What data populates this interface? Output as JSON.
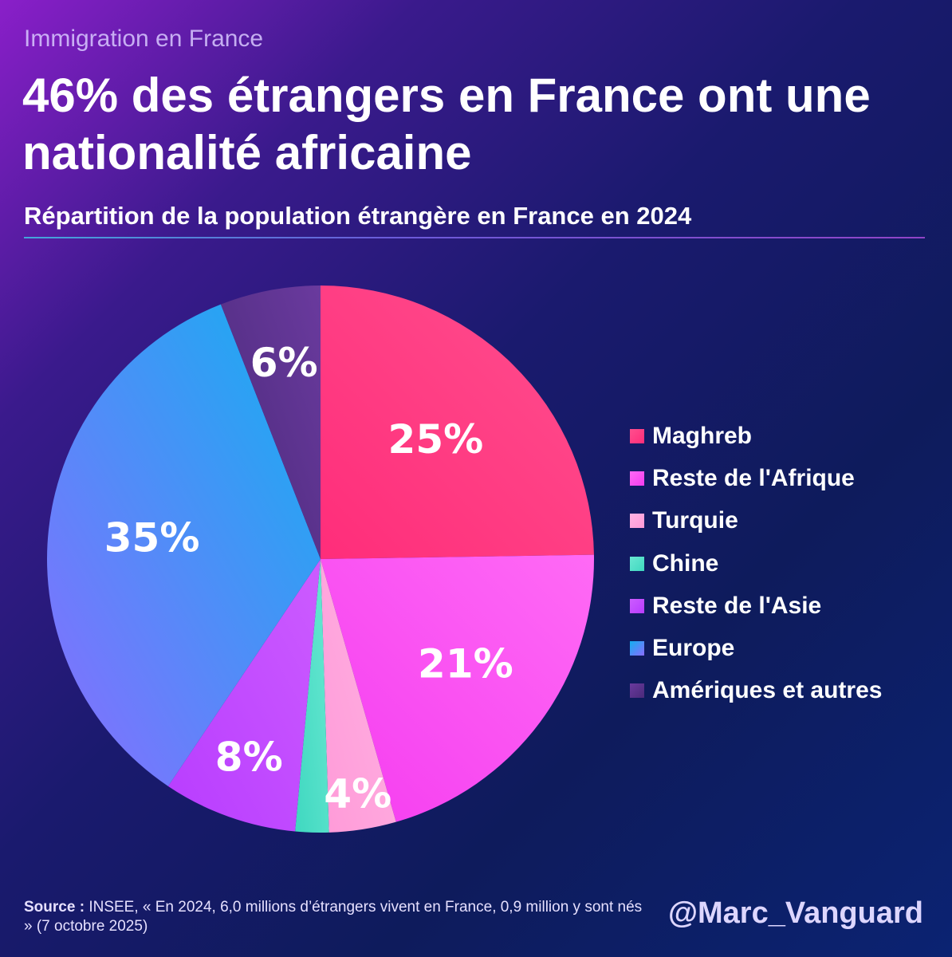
{
  "header": {
    "kicker": "Immigration en France",
    "title": "46% des étrangers en France ont une nationalité africaine",
    "subtitle": "Répartition de la population étrangère en France en 2024"
  },
  "chart_data": {
    "type": "pie",
    "title": "Répartition de la population étrangère en France en 2024",
    "start": "top, clockwise",
    "slices": [
      {
        "name": "Maghreb",
        "value": 25,
        "label": "25%",
        "color": "#ff2d7a",
        "color2": "#ff4f8e"
      },
      {
        "name": "Reste de l'Afrique",
        "value": 21,
        "label": "21%",
        "color": "#f53cf0",
        "color2": "#ff6af5"
      },
      {
        "name": "Turquie",
        "value": 4,
        "label": "4%",
        "color": "#ff9ad8",
        "color2": "#ffb3e3"
      },
      {
        "name": "Chine",
        "value": 2,
        "label": "",
        "color": "#3fd8c0",
        "color2": "#6ae8d2"
      },
      {
        "name": "Reste de l'Asie",
        "value": 8,
        "label": "8%",
        "color": "#b83cff",
        "color2": "#cc5cff"
      },
      {
        "name": "Europe",
        "value": 35,
        "label": "35%",
        "color": "#8a6cff",
        "color2": "#12b0f0"
      },
      {
        "name": "Amériques et autres",
        "value": 6,
        "label": "6%",
        "color": "#4a2a7a",
        "color2": "#6a3a9e"
      }
    ],
    "legend_position": "right"
  },
  "footer": {
    "source_label": "Source :",
    "source_text": "INSEE, « En 2024, 6,0 millions d’étrangers vivent en France, 0,9 million y sont nés » (7 octobre 2025)",
    "handle": "@Marc_Vanguard"
  }
}
